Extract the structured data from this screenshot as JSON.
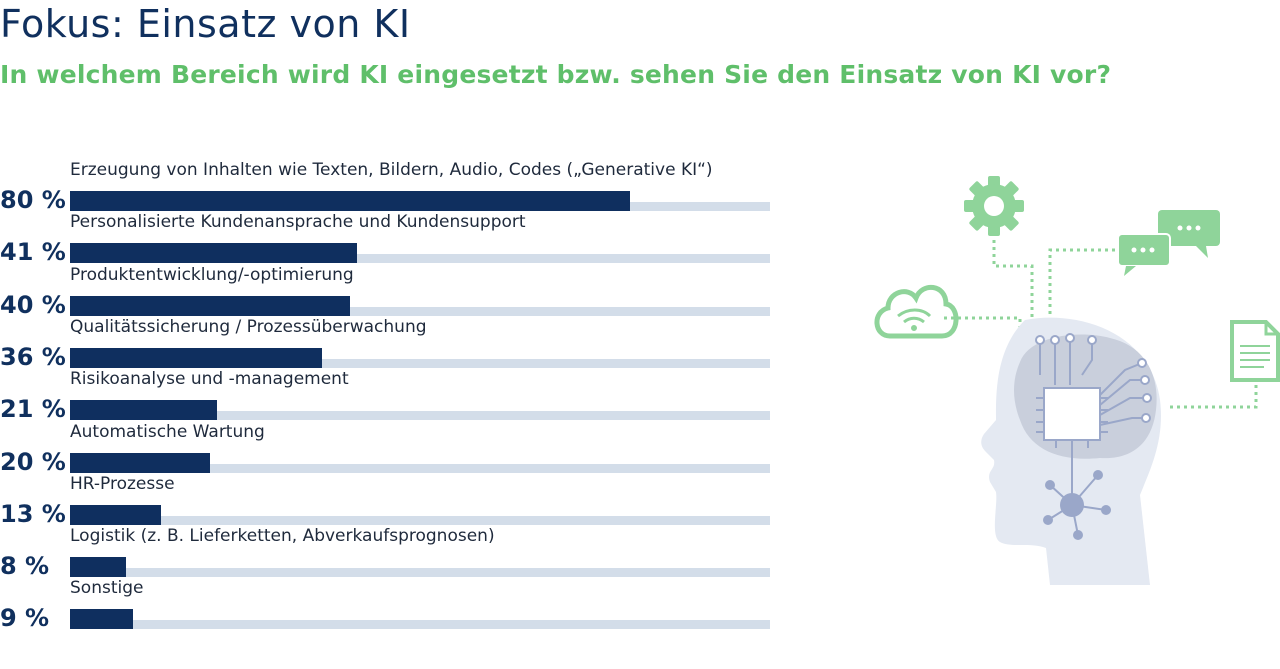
{
  "title": "Fokus: Einsatz von KI",
  "subtitle": "In welchem Bereich wird KI eingesetzt bzw. sehen Sie den Einsatz von KI vor?",
  "colors": {
    "title": "#10305e",
    "subtitle": "#5fbf6a",
    "bar": "#0f2f5f",
    "track": "#d3dde9",
    "icon_green": "#8fd49a",
    "head": "#e4e9f2",
    "brain": "#c9cfdc",
    "circuit": "#9aa7c9"
  },
  "icons": [
    "gear-icon",
    "chat-bubbles-icon",
    "cloud-wifi-icon",
    "document-icon",
    "head-circuit-icon"
  ],
  "chart_data": {
    "type": "bar",
    "orientation": "horizontal",
    "categories": [
      "Erzeugung von Inhalten wie Texten, Bildern, Audio, Codes („Generative KI“)",
      "Personalisierte Kundenansprache und Kundensupport",
      "Produktentwicklung/-optimierung",
      "Qualitätssicherung / Prozessüberwachung",
      "Risikoanalyse und -management",
      "Automatische Wartung",
      "HR-Prozesse",
      "Logistik (z. B. Lieferketten, Abverkaufsprognosen)",
      "Sonstige"
    ],
    "values": [
      80,
      41,
      40,
      36,
      21,
      20,
      13,
      8,
      9
    ],
    "value_labels": [
      "80 %",
      "41 %",
      "40 %",
      "36 %",
      "21 %",
      "20 %",
      "13 %",
      "8 %",
      "9 %"
    ],
    "xlim": [
      0,
      100
    ],
    "unit": "%",
    "grid": false,
    "legend": "none"
  }
}
